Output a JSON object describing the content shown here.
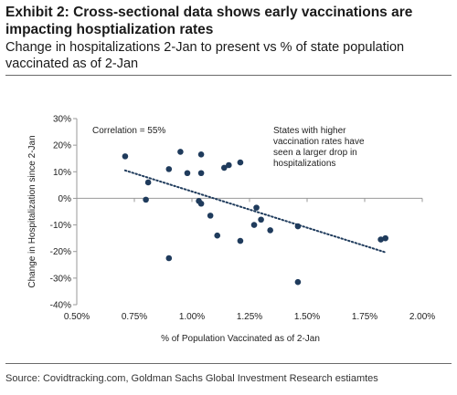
{
  "title": "Exhibit 2: Cross-sectional data shows early vaccinations are impacting hosptialization rates",
  "subtitle": "Change in hospitalizations 2-Jan to present vs % of state population vaccinated as of 2-Jan",
  "source": "Source: Covidtracking.com, Goldman Sachs Global Investment Research estiamtes",
  "chart_data": {
    "type": "scatter",
    "xlabel": "% of Population Vaccinated as of 2-Jan",
    "ylabel": "Change in Hospitalization since 2-Jan",
    "xlim": [
      0.5,
      2.0
    ],
    "ylim": [
      -40,
      30
    ],
    "x_ticks": [
      0.5,
      0.75,
      1.0,
      1.25,
      1.5,
      1.75,
      2.0
    ],
    "x_tick_labels": [
      "0.50%",
      "0.75%",
      "1.00%",
      "1.25%",
      "1.50%",
      "1.75%",
      "2.00%"
    ],
    "y_ticks": [
      -40,
      -30,
      -20,
      -10,
      0,
      10,
      20,
      30
    ],
    "y_tick_labels": [
      "-40%",
      "-30%",
      "-20%",
      "-10%",
      "0%",
      "10%",
      "20%",
      "30%"
    ],
    "grid": false,
    "marker_color": "#1f3b5c",
    "points": [
      {
        "x": 0.71,
        "y": 15.8
      },
      {
        "x": 0.8,
        "y": -0.5
      },
      {
        "x": 0.81,
        "y": 6.0
      },
      {
        "x": 0.9,
        "y": 11.0
      },
      {
        "x": 0.9,
        "y": -22.5
      },
      {
        "x": 0.95,
        "y": 17.5
      },
      {
        "x": 0.98,
        "y": 9.5
      },
      {
        "x": 1.04,
        "y": 16.5
      },
      {
        "x": 1.04,
        "y": 9.5
      },
      {
        "x": 1.03,
        "y": -1.0
      },
      {
        "x": 1.04,
        "y": -2.0
      },
      {
        "x": 1.08,
        "y": -6.5
      },
      {
        "x": 1.11,
        "y": -14.0
      },
      {
        "x": 1.14,
        "y": 11.5
      },
      {
        "x": 1.16,
        "y": 12.5
      },
      {
        "x": 1.21,
        "y": 13.5
      },
      {
        "x": 1.21,
        "y": -16.0
      },
      {
        "x": 1.28,
        "y": -3.5
      },
      {
        "x": 1.27,
        "y": -10.0
      },
      {
        "x": 1.3,
        "y": -8.0
      },
      {
        "x": 1.34,
        "y": -12.0
      },
      {
        "x": 1.46,
        "y": -10.5
      },
      {
        "x": 1.46,
        "y": -31.5
      },
      {
        "x": 1.82,
        "y": -15.5
      },
      {
        "x": 1.84,
        "y": -15.0
      }
    ],
    "trendline": {
      "x": [
        0.71,
        1.84
      ],
      "y": [
        10.5,
        -20.3
      ],
      "style": "dotted"
    },
    "annotations": [
      {
        "text": "Correlation = 55%"
      },
      {
        "lines": [
          "States with higher",
          "vaccination rates have",
          "seen a larger drop in",
          "hospitalizations"
        ]
      }
    ]
  }
}
